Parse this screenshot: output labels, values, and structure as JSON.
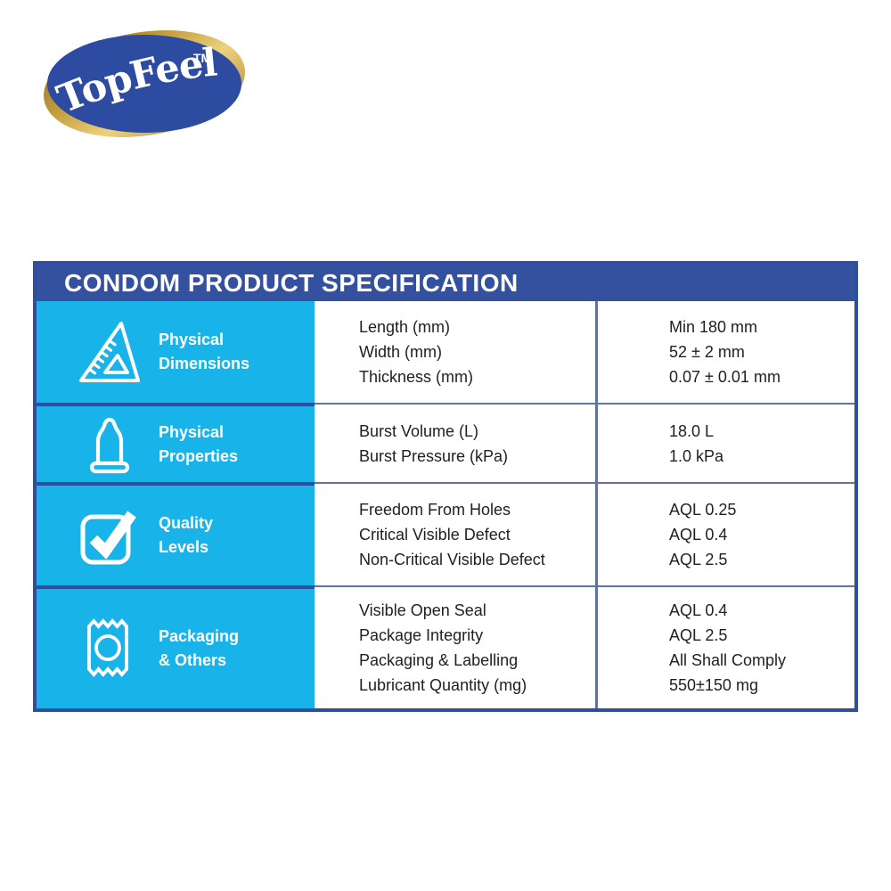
{
  "brand": {
    "name": "TopFeel",
    "tm": "TM"
  },
  "colors": {
    "header_blue": "#34519f",
    "logo_blue": "#2d4ba0",
    "category_cyan": "#18b4e9",
    "table_border_blue": "#2e4f9f",
    "grid_divider_blue": "#5f74a3",
    "body_text": "#212121",
    "gold_dark": "#8a651c",
    "gold_light": "#ecd27e"
  },
  "table": {
    "title": "CONDOM PRODUCT SPECIFICATION",
    "rows": [
      {
        "icon": "set-square-icon",
        "category_lines": [
          "Physical",
          "Dimensions"
        ],
        "specs": [
          "Length (mm)",
          "Width (mm)",
          "Thickness (mm)"
        ],
        "values": [
          "Min 180 mm",
          "52 ± 2 mm",
          "0.07 ± 0.01 mm"
        ]
      },
      {
        "icon": "condom-icon",
        "category_lines": [
          "Physical",
          "Properties"
        ],
        "specs": [
          "Burst Volume (L)",
          "Burst Pressure (kPa)"
        ],
        "values": [
          "18.0 L",
          "1.0 kPa"
        ]
      },
      {
        "icon": "checkbox-check-icon",
        "category_lines": [
          "Quality",
          "Levels"
        ],
        "specs": [
          "Freedom From Holes",
          "Critical Visible Defect",
          "Non-Critical Visible Defect"
        ],
        "values": [
          "AQL 0.25",
          "AQL 0.4",
          "AQL 2.5"
        ]
      },
      {
        "icon": "condom-wrapper-icon",
        "category_lines": [
          "Packaging",
          "& Others"
        ],
        "specs": [
          "Visible Open Seal",
          "Package Integrity",
          "Packaging & Labelling",
          "Lubricant Quantity (mg)"
        ],
        "values": [
          "AQL 0.4",
          "AQL 2.5",
          "All Shall Comply",
          "550±150 mg"
        ]
      }
    ]
  }
}
